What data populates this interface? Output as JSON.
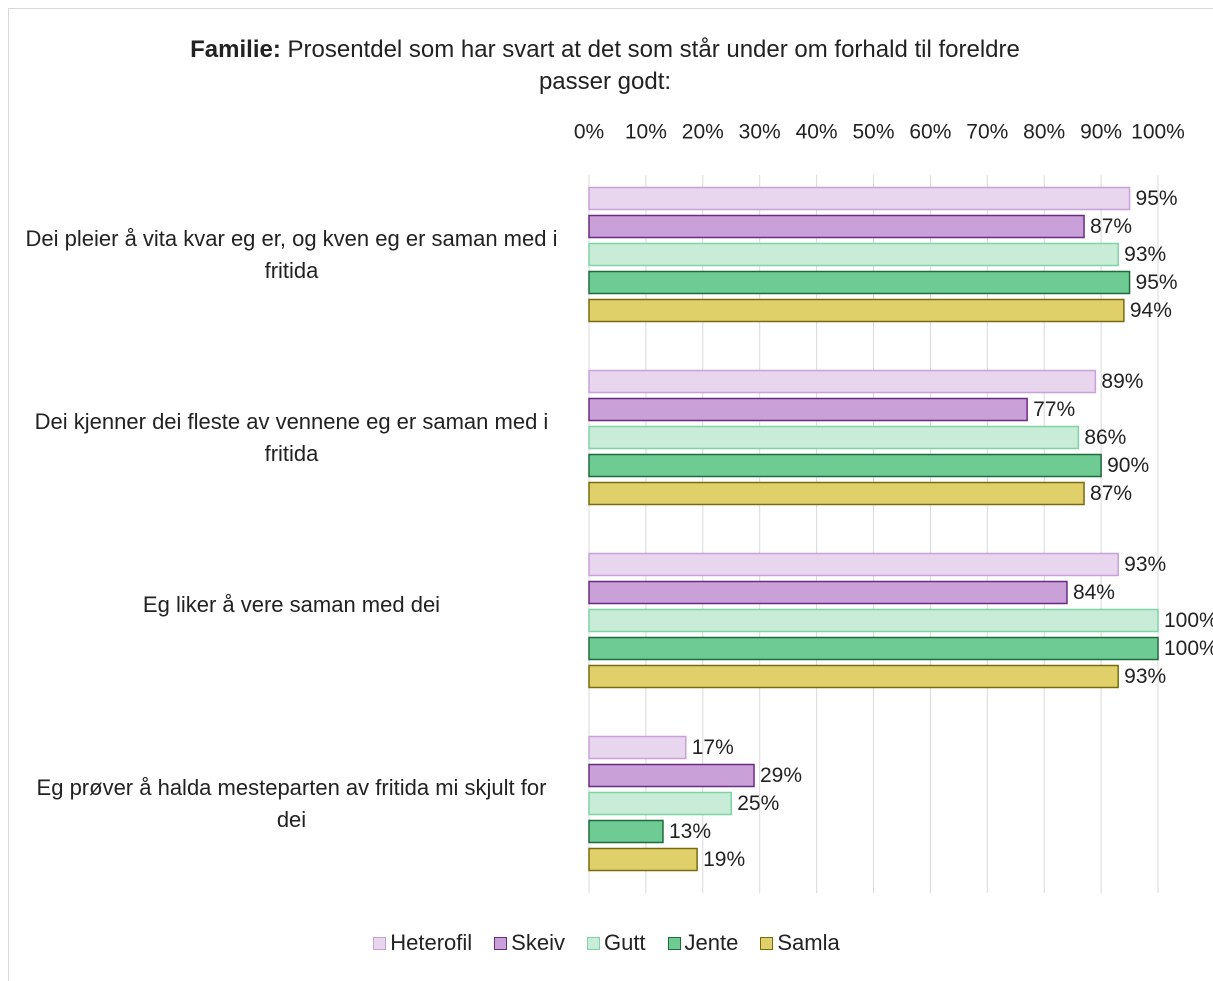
{
  "chart_data": {
    "type": "hbar",
    "title_bold": "Familie:",
    "title": "Prosentdel som har svart at det som står under om forhald til foreldre passer godt:",
    "categories": [
      "Dei pleier å vita kvar eg er, og kven eg er saman med i fritida",
      "Dei kjenner dei fleste av vennene eg er saman med i fritida",
      "Eg liker å vere saman med dei",
      "Eg prøver å halda mesteparten av fritida mi skjult for dei"
    ],
    "series": [
      {
        "name": "Heterofil",
        "color": "#e8d5ee",
        "stroke": "#c9a0d8",
        "values": [
          95,
          89,
          93,
          17
        ],
        "value_labels": [
          "95%",
          "89%",
          "93%",
          "17%"
        ]
      },
      {
        "name": "Skeiv",
        "color": "#c9a0d8",
        "stroke": "#6a2c82",
        "values": [
          87,
          77,
          84,
          29
        ],
        "value_labels": [
          "87%",
          "77%",
          "84%",
          "29%"
        ]
      },
      {
        "name": "Gutt",
        "color": "#c8ecd8",
        "stroke": "#7fd4a5",
        "values": [
          93,
          86,
          100,
          25
        ],
        "value_labels": [
          "93%",
          "86%",
          "100%",
          "25%"
        ]
      },
      {
        "name": "Jente",
        "color": "#6fcb94",
        "stroke": "#1e6b3c",
        "values": [
          95,
          90,
          100,
          13
        ],
        "value_labels": [
          "95%",
          "90%",
          "100%",
          "13%"
        ]
      },
      {
        "name": "Samla",
        "color": "#e0d06a",
        "stroke": "#7a6a10",
        "values": [
          94,
          87,
          93,
          19
        ],
        "value_labels": [
          "94%",
          "87%",
          "93%",
          "19%"
        ]
      }
    ],
    "xlim": [
      0,
      100
    ],
    "xticks": [
      {
        "value": 0,
        "label": "0%"
      },
      {
        "value": 10,
        "label": "10%"
      },
      {
        "value": 20,
        "label": "20%"
      },
      {
        "value": 30,
        "label": "30%"
      },
      {
        "value": 40,
        "label": "40%"
      },
      {
        "value": 50,
        "label": "50%"
      },
      {
        "value": 60,
        "label": "60%"
      },
      {
        "value": 70,
        "label": "70%"
      },
      {
        "value": 80,
        "label": "80%"
      },
      {
        "value": 90,
        "label": "90%"
      },
      {
        "value": 100,
        "label": "100%"
      }
    ],
    "grid": true
  }
}
